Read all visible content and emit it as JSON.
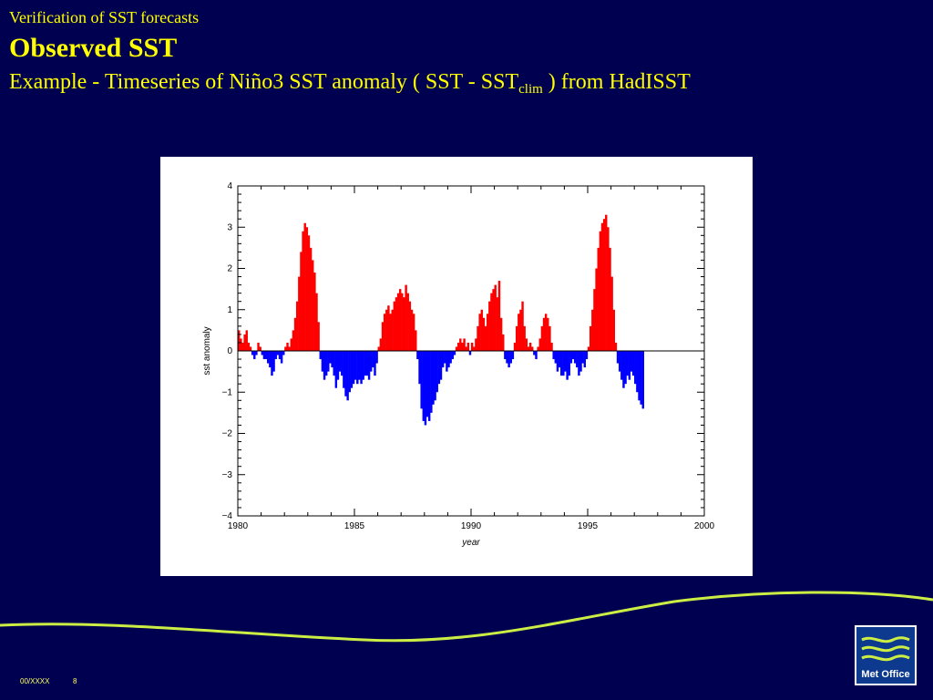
{
  "slide": {
    "supertitle": "Verification of SST forecasts",
    "title": "Observed SST",
    "subtitle_main": "Example - Timeseries of Niño3 SST anomaly  ( SST - SST",
    "subtitle_sub": "clim",
    "subtitle_tail": " )  from HadISST",
    "footer_code": "00/XXXX",
    "footer_page": "8",
    "logo_text": "Met Office",
    "colors": {
      "background": "#000050",
      "text": "#ffff00",
      "wave": "#ccee44",
      "logo": "#0d3a8e"
    }
  },
  "chart_data": {
    "type": "bar",
    "xlabel": "year",
    "ylabel": "sst anomaly",
    "xlim": [
      1980,
      2000
    ],
    "ylim": [
      -4,
      4
    ],
    "x_ticks": [
      1980,
      1985,
      1990,
      1995,
      2000
    ],
    "y_ticks": [
      4,
      3,
      2,
      1,
      0,
      -1,
      -2,
      -3,
      -4
    ],
    "positive_color": "#ff0000",
    "negative_color": "#0000ff",
    "grid": false,
    "x_start": 1980.0,
    "step_years": 0.0833,
    "values": [
      0.5,
      0.3,
      0.2,
      0.4,
      0.5,
      0.2,
      0.1,
      -0.1,
      -0.2,
      -0.1,
      0.2,
      0.1,
      -0.1,
      -0.2,
      -0.2,
      -0.3,
      -0.4,
      -0.6,
      -0.5,
      -0.2,
      -0.1,
      -0.2,
      -0.3,
      -0.1,
      0.1,
      0.2,
      0.1,
      0.3,
      0.5,
      0.8,
      1.2,
      1.8,
      2.4,
      2.9,
      3.1,
      3.0,
      2.8,
      2.5,
      2.2,
      1.9,
      1.4,
      0.7,
      -0.2,
      -0.5,
      -0.7,
      -0.6,
      -0.5,
      -0.3,
      -0.4,
      -0.6,
      -0.9,
      -0.7,
      -0.5,
      -0.6,
      -0.9,
      -1.1,
      -1.2,
      -1.0,
      -0.9,
      -0.8,
      -0.7,
      -0.8,
      -0.7,
      -0.8,
      -0.7,
      -0.6,
      -0.6,
      -0.7,
      -0.5,
      -0.4,
      -0.6,
      -0.3,
      0.1,
      0.3,
      0.7,
      0.9,
      1.0,
      1.1,
      0.9,
      1.0,
      1.2,
      1.3,
      1.4,
      1.5,
      1.4,
      1.3,
      1.6,
      1.4,
      1.2,
      1.0,
      0.9,
      0.5,
      -0.2,
      -0.8,
      -1.4,
      -1.7,
      -1.8,
      -1.6,
      -1.7,
      -1.5,
      -1.3,
      -1.2,
      -1.0,
      -0.8,
      -0.7,
      -0.4,
      -0.3,
      -0.5,
      -0.4,
      -0.3,
      -0.2,
      -0.1,
      0.1,
      0.2,
      0.3,
      0.2,
      0.3,
      0.1,
      0.2,
      -0.1,
      0.2,
      0.1,
      0.3,
      0.6,
      0.9,
      1.0,
      0.8,
      0.6,
      0.9,
      1.2,
      1.4,
      1.5,
      1.6,
      1.3,
      1.7,
      0.8,
      0.4,
      -0.2,
      -0.3,
      -0.4,
      -0.3,
      -0.2,
      0.2,
      0.6,
      0.9,
      1.0,
      1.2,
      0.6,
      0.3,
      0.1,
      0.2,
      0.1,
      -0.1,
      -0.2,
      0.1,
      0.3,
      0.6,
      0.8,
      0.9,
      0.8,
      0.6,
      0.2,
      -0.2,
      -0.3,
      -0.5,
      -0.4,
      -0.6,
      -0.6,
      -0.5,
      -0.7,
      -0.6,
      -0.3,
      -0.2,
      -0.3,
      -0.4,
      -0.6,
      -0.5,
      -0.3,
      -0.4,
      -0.2,
      0.1,
      0.6,
      1.0,
      1.5,
      2.0,
      2.5,
      2.9,
      3.1,
      3.2,
      3.3,
      3.0,
      2.5,
      1.8,
      1.0,
      0.2,
      -0.3,
      -0.5,
      -0.7,
      -0.9,
      -0.8,
      -0.6,
      -0.7,
      -0.5,
      -0.6,
      -0.8,
      -1.0,
      -1.2,
      -1.3,
      -1.4
    ]
  }
}
